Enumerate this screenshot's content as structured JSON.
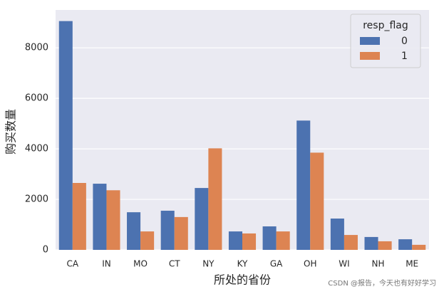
{
  "chart_data": {
    "type": "grouped_bar",
    "y_label": "购买数量",
    "x_label": "所处的省份",
    "categories": [
      "CA",
      "IN",
      "MO",
      "CT",
      "NY",
      "KY",
      "GA",
      "OH",
      "WI",
      "NH",
      "ME"
    ],
    "series": [
      {
        "name": "0",
        "color": "#4c72b0",
        "values": [
          9060,
          2620,
          1490,
          1550,
          2450,
          730,
          930,
          5120,
          1240,
          510,
          420
        ]
      },
      {
        "name": "1",
        "color": "#dd8452",
        "values": [
          2650,
          2360,
          730,
          1300,
          4020,
          650,
          730,
          3850,
          590,
          340,
          200
        ]
      }
    ],
    "legend_title": "resp_flag",
    "legend": "upper right",
    "ylim": [
      0,
      9500
    ],
    "yticks": [
      0,
      2000,
      4000,
      6000,
      8000
    ],
    "grid": true,
    "watermark": "CSDN @报告，今天也有好好学习"
  }
}
